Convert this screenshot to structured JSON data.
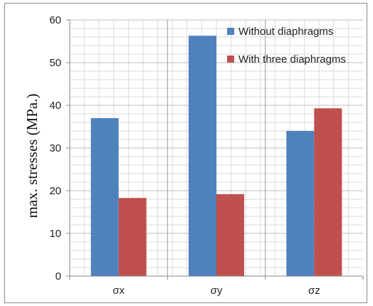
{
  "chart_data": {
    "type": "bar",
    "title": "",
    "xlabel": "",
    "ylabel": "max. stresses (MPa.)",
    "ylim": [
      0,
      60
    ],
    "yticks": [
      0,
      10,
      20,
      30,
      40,
      50,
      60
    ],
    "grid": true,
    "legend_position": "top-right",
    "categories": [
      "σx",
      "σy",
      "σz"
    ],
    "series": [
      {
        "name": "Without diaphragms",
        "color": "#4f81bd",
        "values": [
          37,
          56.3,
          34
        ]
      },
      {
        "name": "With three diaphragms",
        "color": "#c0504d",
        "values": [
          18.3,
          19.2,
          39.3
        ]
      }
    ]
  }
}
